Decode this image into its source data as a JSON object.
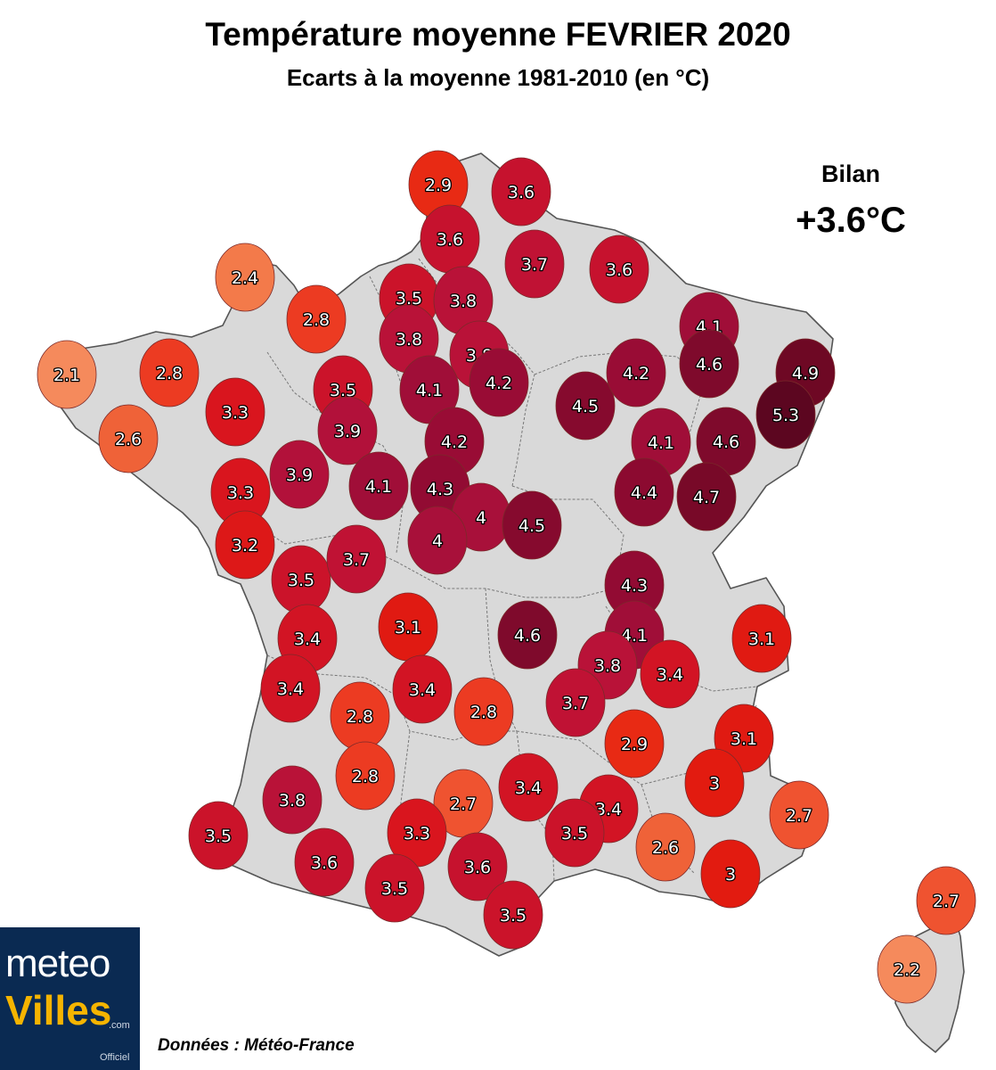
{
  "title": "Température moyenne FEVRIER 2020",
  "subtitle": "Ecarts à la moyenne 1981-2010 (en °C)",
  "summary": {
    "label": "Bilan",
    "value": "+3.6°C"
  },
  "source": "Données : Météo-France",
  "logo": {
    "line1": "meteo",
    "line2": "Villes",
    "suffix": ".com",
    "badge": "Officiel"
  },
  "color_scale": {
    "2.1": "#f58a5c",
    "2.2": "#f58a5c",
    "2.4": "#f37a4a",
    "2.6": "#ef6238",
    "2.7": "#ef5330",
    "2.8": "#ec3b22",
    "2.9": "#e82a14",
    "3": "#e21b10",
    "3.1": "#e01a12",
    "3.2": "#dd1818",
    "3.3": "#d9151e",
    "3.4": "#d21424",
    "3.5": "#cb132a",
    "3.6": "#c6122e",
    "3.7": "#c01234",
    "3.8": "#b91238",
    "3.9": "#b2113a",
    "4": "#a8103a",
    "4.1": "#a00e38",
    "4.2": "#990c35",
    "4.3": "#920b33",
    "4.4": "#8c0a30",
    "4.5": "#860a2e",
    "4.6": "#7f0a2c",
    "4.7": "#780928",
    "4.9": "#6e0824",
    "5.3": "#5c0620"
  },
  "stations": [
    {
      "id": "mer-du-nord",
      "value": "2.9"
    },
    {
      "id": "nord-est",
      "value": "3.6"
    },
    {
      "id": "pas-de-calais",
      "value": "3.6"
    },
    {
      "id": "aisne",
      "value": "3.7"
    },
    {
      "id": "ardennes",
      "value": "3.6"
    },
    {
      "id": "manche-nord",
      "value": "2.4"
    },
    {
      "id": "calvados",
      "value": "2.8"
    },
    {
      "id": "seine-maritime",
      "value": "3.5"
    },
    {
      "id": "somme",
      "value": "3.8"
    },
    {
      "id": "eure",
      "value": "3.8"
    },
    {
      "id": "oise",
      "value": "3.8"
    },
    {
      "id": "meuse",
      "value": "4.1"
    },
    {
      "id": "finistere",
      "value": "2.1"
    },
    {
      "id": "cotes-d-armor",
      "value": "2.8"
    },
    {
      "id": "orne",
      "value": "3.5"
    },
    {
      "id": "paris",
      "value": "4.1"
    },
    {
      "id": "marne",
      "value": "4.2"
    },
    {
      "id": "aube",
      "value": "4.5"
    },
    {
      "id": "haute-marne",
      "value": "4.2"
    },
    {
      "id": "moselle",
      "value": "4.6"
    },
    {
      "id": "bas-rhin",
      "value": "4.9"
    },
    {
      "id": "haut-rhin",
      "value": "5.3"
    },
    {
      "id": "ille-et-vilaine",
      "value": "3.3"
    },
    {
      "id": "morbihan",
      "value": "2.6"
    },
    {
      "id": "sarthe",
      "value": "3.9"
    },
    {
      "id": "loiret",
      "value": "4.2"
    },
    {
      "id": "cote-d-or",
      "value": "4.1"
    },
    {
      "id": "vosges",
      "value": "4.6"
    },
    {
      "id": "loire-atlantique",
      "value": "3.3"
    },
    {
      "id": "maine-et-loire",
      "value": "3.9"
    },
    {
      "id": "loir-et-cher",
      "value": "4.1"
    },
    {
      "id": "cher",
      "value": "4.3"
    },
    {
      "id": "nievre",
      "value": "4"
    },
    {
      "id": "yonne",
      "value": "4.5"
    },
    {
      "id": "saone-et-loire",
      "value": "4.4"
    },
    {
      "id": "doubs",
      "value": "4.7"
    },
    {
      "id": "vendee",
      "value": "3.2"
    },
    {
      "id": "deux-sevres",
      "value": "3.5"
    },
    {
      "id": "indre",
      "value": "3.7"
    },
    {
      "id": "allier",
      "value": "4"
    },
    {
      "id": "ain",
      "value": "4.3"
    },
    {
      "id": "charente-maritime",
      "value": "3.4"
    },
    {
      "id": "haute-vienne",
      "value": "3.1"
    },
    {
      "id": "puy-de-dome",
      "value": "4.6"
    },
    {
      "id": "rhone",
      "value": "4.1"
    },
    {
      "id": "savoie",
      "value": "3.1"
    },
    {
      "id": "loire",
      "value": "3.8"
    },
    {
      "id": "isere",
      "value": "3.4"
    },
    {
      "id": "gironde-nord",
      "value": "3.4"
    },
    {
      "id": "correze",
      "value": "2.8"
    },
    {
      "id": "cantal",
      "value": "3.4"
    },
    {
      "id": "haute-loire",
      "value": "2.8"
    },
    {
      "id": "ardeche",
      "value": "3.7"
    },
    {
      "id": "drome",
      "value": "2.9"
    },
    {
      "id": "hautes-alpes",
      "value": "3.1"
    },
    {
      "id": "dordogne",
      "value": "2.8"
    },
    {
      "id": "lot",
      "value": "2.7"
    },
    {
      "id": "aveyron",
      "value": "3.4"
    },
    {
      "id": "gard",
      "value": "3.4"
    },
    {
      "id": "vaucluse",
      "value": "3"
    },
    {
      "id": "alpes-maritimes",
      "value": "2.7"
    },
    {
      "id": "landes-nord",
      "value": "3.8"
    },
    {
      "id": "landes",
      "value": "3.5"
    },
    {
      "id": "tarn-et-garonne",
      "value": "3.3"
    },
    {
      "id": "herault",
      "value": "3.5"
    },
    {
      "id": "bouches-du-rhone",
      "value": "2.6"
    },
    {
      "id": "var",
      "value": "3"
    },
    {
      "id": "gers",
      "value": "3.6"
    },
    {
      "id": "tarn",
      "value": "3.6"
    },
    {
      "id": "haute-garonne",
      "value": "3.5"
    },
    {
      "id": "aude",
      "value": "3.5"
    },
    {
      "id": "haute-corse",
      "value": "2.7"
    },
    {
      "id": "corse-du-sud",
      "value": "2.2"
    }
  ]
}
